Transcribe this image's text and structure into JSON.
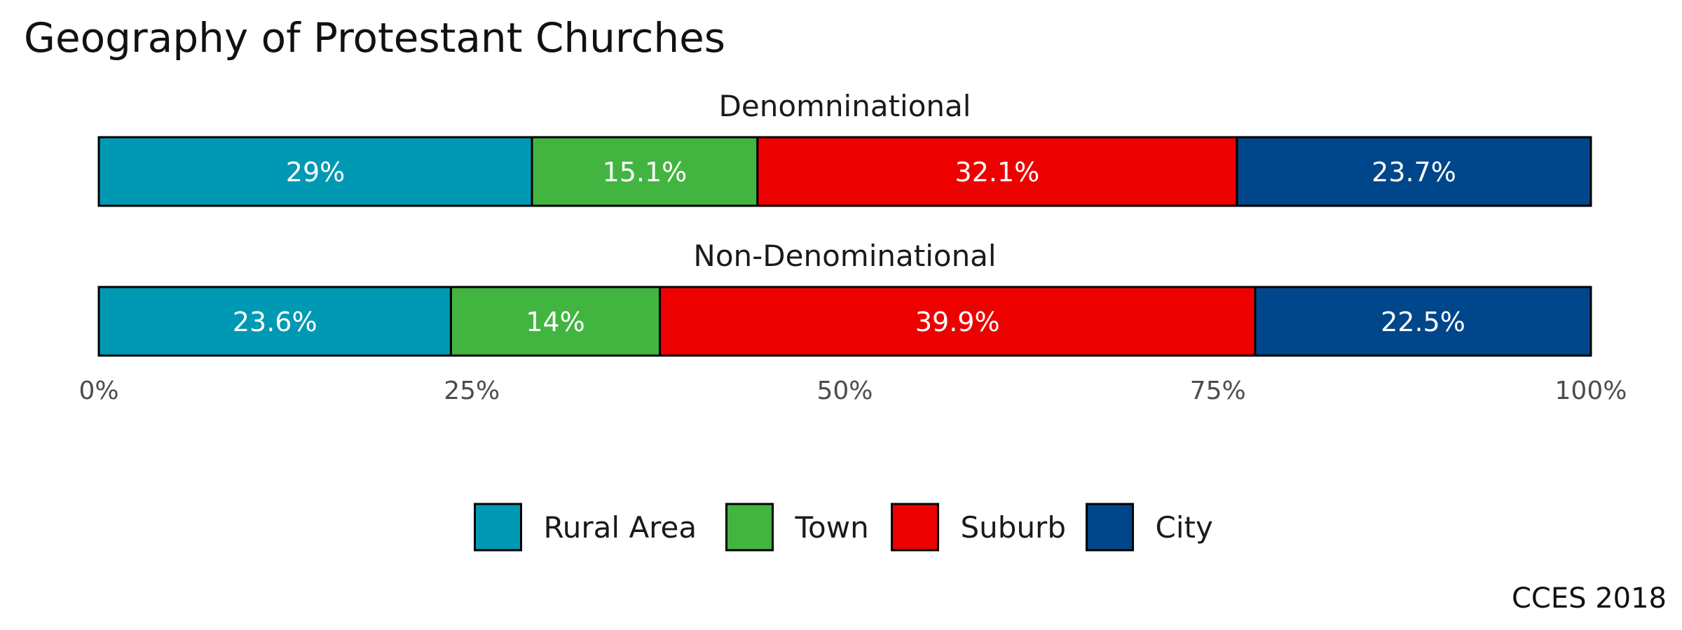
{
  "chart_data": {
    "type": "bar",
    "orientation": "horizontal",
    "stacked": true,
    "normalized": true,
    "title": "Geography of Protestant Churches",
    "caption": "CCES 2018",
    "categories": [
      "Denomninational",
      "Non-Denominational"
    ],
    "series": [
      {
        "name": "Rural Area",
        "color": "#0099B4",
        "values": [
          29,
          23.6
        ],
        "labels": [
          "29%",
          "23.6%"
        ]
      },
      {
        "name": "Town",
        "color": "#42B540",
        "values": [
          15.1,
          14
        ],
        "labels": [
          "15.1%",
          "14%"
        ]
      },
      {
        "name": "Suburb",
        "color": "#ED0000",
        "values": [
          32.1,
          39.9
        ],
        "labels": [
          "32.1%",
          "39.9%"
        ]
      },
      {
        "name": "City",
        "color": "#00468B",
        "values": [
          23.7,
          22.5
        ],
        "labels": [
          "23.7%",
          "22.5%"
        ]
      }
    ],
    "xlim": [
      0,
      100
    ],
    "xticks": [
      0,
      25,
      50,
      75,
      100
    ],
    "xtick_labels": [
      "0%",
      "25%",
      "50%",
      "75%",
      "100%"
    ],
    "grid": false,
    "legend_position": "bottom"
  }
}
